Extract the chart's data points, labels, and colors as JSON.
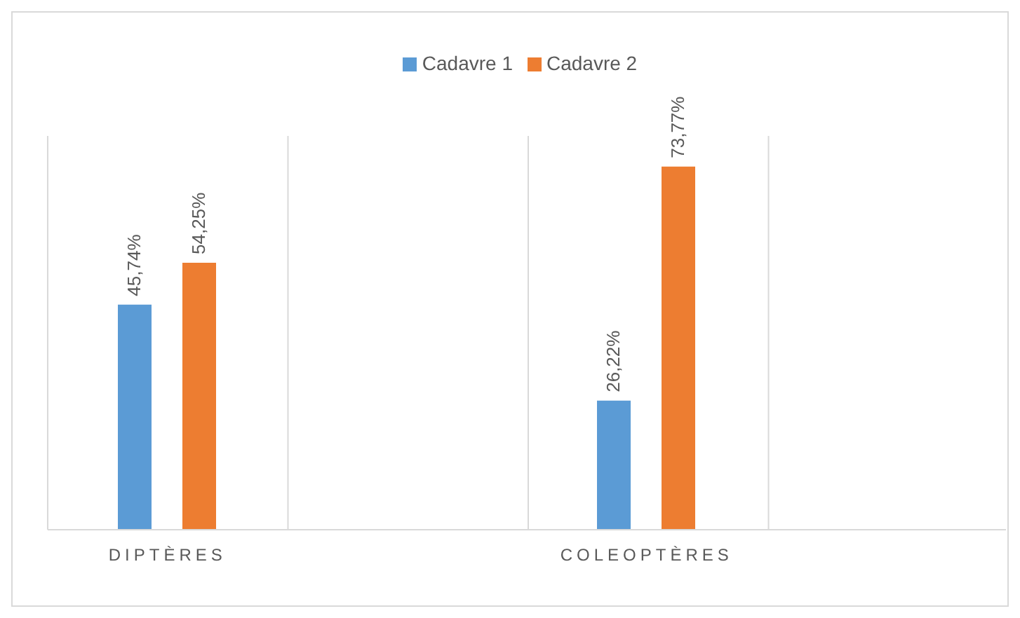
{
  "chart_data": {
    "type": "bar",
    "categories": [
      "DIPTÈRES",
      null,
      "COLEOPTÈRES",
      null
    ],
    "series": [
      {
        "name": "Cadavre 1",
        "color": "#5b9bd5",
        "values": [
          45.74,
          null,
          26.22,
          null
        ],
        "value_labels": [
          "45,74%",
          null,
          "26,22%",
          null
        ]
      },
      {
        "name": "Cadavre 2",
        "color": "#ed7d31",
        "values": [
          54.25,
          null,
          73.77,
          null
        ],
        "value_labels": [
          "54,25%",
          null,
          "73,77%",
          null
        ]
      }
    ],
    "ylim": [
      0,
      80
    ],
    "grid": "x",
    "legend": "top",
    "tick_labels": "x"
  }
}
